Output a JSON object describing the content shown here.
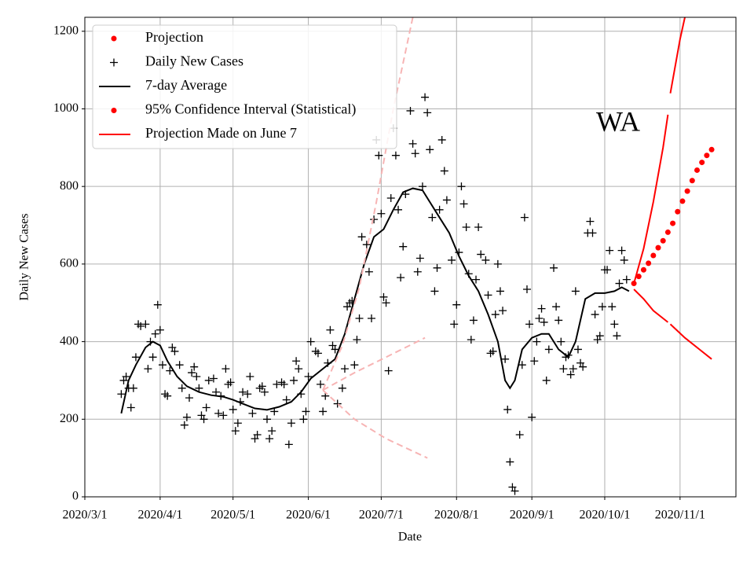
{
  "chart_data": {
    "type": "line",
    "xlabel": "Date",
    "ylabel": "Daily New Cases",
    "annotation": "WA",
    "xlim": [
      "2020-03-01",
      "2020-11-24"
    ],
    "ylim": [
      0,
      1236
    ],
    "yticks": [
      0,
      200,
      400,
      600,
      800,
      1000,
      1200
    ],
    "xticks": [
      {
        "value": "2020-03-01",
        "label": "2020/3/1"
      },
      {
        "value": "2020-04-01",
        "label": "2020/4/1"
      },
      {
        "value": "2020-05-01",
        "label": "2020/5/1"
      },
      {
        "value": "2020-06-01",
        "label": "2020/6/1"
      },
      {
        "value": "2020-07-01",
        "label": "2020/7/1"
      },
      {
        "value": "2020-08-01",
        "label": "2020/8/1"
      },
      {
        "value": "2020-09-01",
        "label": "2020/9/1"
      },
      {
        "value": "2020-10-01",
        "label": "2020/10/1"
      },
      {
        "value": "2020-11-01",
        "label": "2020/11/1"
      }
    ],
    "grid": true,
    "legend_position": "upper left",
    "legend": [
      {
        "label": "Projection",
        "color": "#ff0000",
        "marker": "dot"
      },
      {
        "label": "Daily New Cases",
        "color": "#000000",
        "marker": "plus"
      },
      {
        "label": "7-day Average",
        "color": "#000000",
        "marker": "line"
      },
      {
        "label": "95% Confidence Interval (Statistical)",
        "color": "#ff0000",
        "marker": "dot"
      },
      {
        "label": "Projection Made on June 7",
        "color": "#ff0000",
        "marker": "line"
      }
    ],
    "series": [
      {
        "style": "plus",
        "color": "#000000",
        "x": [
          "2020-03-16",
          "2020-03-17",
          "2020-03-18",
          "2020-03-19",
          "2020-03-20",
          "2020-03-21",
          "2020-03-22",
          "2020-03-23",
          "2020-03-24",
          "2020-03-26",
          "2020-03-27",
          "2020-03-28",
          "2020-03-29",
          "2020-03-30",
          "2020-03-31",
          "2020-04-01",
          "2020-04-02",
          "2020-04-03",
          "2020-04-04",
          "2020-04-05",
          "2020-04-06",
          "2020-04-07",
          "2020-04-09",
          "2020-04-10",
          "2020-04-11",
          "2020-04-12",
          "2020-04-13",
          "2020-04-14",
          "2020-04-15",
          "2020-04-16",
          "2020-04-17",
          "2020-04-18",
          "2020-04-19",
          "2020-04-20",
          "2020-04-21",
          "2020-04-23",
          "2020-04-24",
          "2020-04-25",
          "2020-04-26",
          "2020-04-27",
          "2020-04-28",
          "2020-04-29",
          "2020-04-30",
          "2020-05-01",
          "2020-05-02",
          "2020-05-03",
          "2020-05-04",
          "2020-05-05",
          "2020-05-07",
          "2020-05-08",
          "2020-05-09",
          "2020-05-10",
          "2020-05-11",
          "2020-05-12",
          "2020-05-13",
          "2020-05-14",
          "2020-05-15",
          "2020-05-16",
          "2020-05-17",
          "2020-05-18",
          "2020-05-19",
          "2020-05-21",
          "2020-05-22",
          "2020-05-23",
          "2020-05-24",
          "2020-05-25",
          "2020-05-26",
          "2020-05-27",
          "2020-05-28",
          "2020-05-29",
          "2020-05-30",
          "2020-05-31",
          "2020-06-01",
          "2020-06-02",
          "2020-06-04",
          "2020-06-05",
          "2020-06-06",
          "2020-06-07",
          "2020-06-08",
          "2020-06-09",
          "2020-06-10",
          "2020-06-11",
          "2020-06-12",
          "2020-06-13",
          "2020-06-15",
          "2020-06-16",
          "2020-06-17",
          "2020-06-18",
          "2020-06-19",
          "2020-06-20",
          "2020-06-21",
          "2020-06-22",
          "2020-06-23",
          "2020-06-25",
          "2020-06-26",
          "2020-06-27",
          "2020-06-28",
          "2020-06-29",
          "2020-06-30",
          "2020-07-01",
          "2020-07-02",
          "2020-07-03",
          "2020-07-04",
          "2020-07-05",
          "2020-07-06",
          "2020-07-07",
          "2020-07-08",
          "2020-07-09",
          "2020-07-10",
          "2020-07-11",
          "2020-07-13",
          "2020-07-14",
          "2020-07-15",
          "2020-07-16",
          "2020-07-17",
          "2020-07-18",
          "2020-07-19",
          "2020-07-20",
          "2020-07-21",
          "2020-07-22",
          "2020-07-23",
          "2020-07-24",
          "2020-07-25",
          "2020-07-26",
          "2020-07-27",
          "2020-07-28",
          "2020-07-30",
          "2020-07-31",
          "2020-08-01",
          "2020-08-02",
          "2020-08-03",
          "2020-08-04",
          "2020-08-05",
          "2020-08-06",
          "2020-08-07",
          "2020-08-08",
          "2020-08-09",
          "2020-08-10",
          "2020-08-11",
          "2020-08-13",
          "2020-08-14",
          "2020-08-15",
          "2020-08-16",
          "2020-08-17",
          "2020-08-18",
          "2020-08-19",
          "2020-08-20",
          "2020-08-21",
          "2020-08-22",
          "2020-08-23",
          "2020-08-24",
          "2020-08-25",
          "2020-08-27",
          "2020-08-28",
          "2020-08-29",
          "2020-08-30",
          "2020-08-31",
          "2020-09-01",
          "2020-09-02",
          "2020-09-03",
          "2020-09-04",
          "2020-09-05",
          "2020-09-06",
          "2020-09-07",
          "2020-09-08",
          "2020-09-10",
          "2020-09-11",
          "2020-09-12",
          "2020-09-13",
          "2020-09-14",
          "2020-09-15",
          "2020-09-16",
          "2020-09-17",
          "2020-09-18",
          "2020-09-19",
          "2020-09-20",
          "2020-09-21",
          "2020-09-22",
          "2020-09-24",
          "2020-09-25",
          "2020-09-26",
          "2020-09-27",
          "2020-09-28",
          "2020-09-29",
          "2020-09-30",
          "2020-10-01",
          "2020-10-02",
          "2020-10-03",
          "2020-10-04",
          "2020-10-05",
          "2020-10-06",
          "2020-10-07",
          "2020-10-08",
          "2020-10-09",
          "2020-10-10"
        ],
        "values": [
          265,
          300,
          310,
          280,
          230,
          280,
          360,
          445,
          440,
          445,
          330,
          400,
          360,
          420,
          495,
          430,
          340,
          265,
          260,
          325,
          385,
          375,
          340,
          280,
          185,
          205,
          255,
          320,
          335,
          310,
          280,
          210,
          200,
          230,
          300,
          305,
          270,
          215,
          260,
          210,
          330,
          290,
          295,
          225,
          170,
          190,
          245,
          270,
          265,
          310,
          215,
          150,
          160,
          280,
          285,
          270,
          200,
          150,
          170,
          220,
          290,
          295,
          290,
          250,
          135,
          190,
          300,
          350,
          330,
          265,
          200,
          220,
          310,
          400,
          375,
          370,
          290,
          220,
          260,
          345,
          430,
          390,
          380,
          240,
          280,
          330,
          490,
          500,
          505,
          340,
          405,
          460,
          670,
          650,
          580,
          460,
          715,
          920,
          880,
          730,
          515,
          500,
          325,
          770,
          950,
          880,
          740,
          565,
          645,
          780,
          995,
          910,
          885,
          580,
          615,
          800,
          1030,
          990,
          895,
          720,
          530,
          590,
          740,
          920,
          840,
          765,
          610,
          445,
          495,
          630,
          800,
          755,
          695,
          575,
          405,
          455,
          560,
          695,
          625,
          610,
          520,
          370,
          375,
          470,
          600,
          530,
          480,
          355,
          225,
          90,
          25,
          15,
          160,
          340,
          720,
          535,
          445,
          205,
          350,
          400,
          460,
          485,
          450,
          300,
          380,
          590,
          490,
          455,
          400,
          330,
          360,
          365,
          315,
          330,
          530,
          380,
          345,
          335,
          680,
          710,
          680,
          470,
          405,
          415,
          490,
          585,
          585,
          635,
          490,
          445,
          415,
          550,
          635,
          610,
          560
        ]
      },
      {
        "style": "line",
        "color": "#000000",
        "x": [
          "2020-03-16",
          "2020-03-19",
          "2020-03-22",
          "2020-03-26",
          "2020-03-29",
          "2020-04-01",
          "2020-04-04",
          "2020-04-08",
          "2020-04-12",
          "2020-04-17",
          "2020-04-22",
          "2020-04-27",
          "2020-05-01",
          "2020-05-05",
          "2020-05-10",
          "2020-05-15",
          "2020-05-20",
          "2020-05-25",
          "2020-05-29",
          "2020-06-02",
          "2020-06-07",
          "2020-06-12",
          "2020-06-16",
          "2020-06-20",
          "2020-06-24",
          "2020-06-28",
          "2020-07-02",
          "2020-07-06",
          "2020-07-10",
          "2020-07-14",
          "2020-07-18",
          "2020-07-21",
          "2020-07-25",
          "2020-07-29",
          "2020-08-02",
          "2020-08-06",
          "2020-08-10",
          "2020-08-14",
          "2020-08-18",
          "2020-08-21",
          "2020-08-23",
          "2020-08-25",
          "2020-08-28",
          "2020-09-01",
          "2020-09-05",
          "2020-09-08",
          "2020-09-12",
          "2020-09-16",
          "2020-09-19",
          "2020-09-23",
          "2020-09-27",
          "2020-10-01",
          "2020-10-05",
          "2020-10-08",
          "2020-10-11"
        ],
        "values": [
          215,
          300,
          340,
          385,
          400,
          390,
          350,
          310,
          285,
          270,
          262,
          258,
          250,
          240,
          228,
          224,
          232,
          245,
          270,
          305,
          330,
          355,
          420,
          510,
          600,
          670,
          690,
          740,
          785,
          795,
          790,
          760,
          720,
          680,
          620,
          570,
          530,
          470,
          400,
          300,
          280,
          300,
          380,
          410,
          420,
          420,
          380,
          360,
          400,
          510,
          525,
          525,
          530,
          540,
          530
        ]
      },
      {
        "style": "dashed",
        "color": "#f7b4b4",
        "x": [
          "2020-06-07",
          "2020-06-15",
          "2020-06-22",
          "2020-06-29",
          "2020-07-06",
          "2020-07-14"
        ],
        "values": [
          275,
          390,
          540,
          760,
          1000,
          1236
        ]
      },
      {
        "style": "dashed",
        "color": "#f7b4b4",
        "x": [
          "2020-06-07",
          "2020-06-20",
          "2020-07-03",
          "2020-07-19"
        ],
        "values": [
          275,
          320,
          360,
          410
        ]
      },
      {
        "style": "dashed",
        "color": "#f7b4b4",
        "x": [
          "2020-06-07",
          "2020-06-20",
          "2020-07-03",
          "2020-07-20"
        ],
        "values": [
          275,
          200,
          150,
          100
        ]
      },
      {
        "style": "line",
        "color": "#ff0000",
        "x": [
          "2020-10-13",
          "2020-10-17",
          "2020-10-21",
          "2020-10-25",
          "2020-10-27",
          null,
          "2020-10-28",
          "2020-11-01",
          "2020-11-03"
        ],
        "values": [
          550,
          640,
          760,
          900,
          985,
          null,
          1040,
          1180,
          1236
        ]
      },
      {
        "style": "line",
        "color": "#ff0000",
        "x": [
          "2020-10-13",
          "2020-10-17",
          "2020-10-21",
          "2020-10-27",
          null,
          "2020-10-28",
          "2020-11-03",
          "2020-11-09",
          "2020-11-14"
        ],
        "values": [
          535,
          510,
          480,
          450,
          null,
          445,
          410,
          380,
          355
        ]
      },
      {
        "style": "dot",
        "color": "#ff0000",
        "x": [
          "2020-10-13",
          "2020-10-15",
          "2020-10-17",
          "2020-10-19",
          "2020-10-21",
          "2020-10-23",
          "2020-10-25",
          "2020-10-27",
          "2020-10-29",
          "2020-10-31",
          "2020-11-02",
          "2020-11-04",
          "2020-11-06",
          "2020-11-08",
          "2020-11-10",
          "2020-11-12",
          "2020-11-14"
        ],
        "values": [
          550,
          568,
          585,
          602,
          622,
          642,
          660,
          682,
          705,
          735,
          762,
          788,
          815,
          842,
          862,
          880,
          895
        ]
      }
    ]
  }
}
